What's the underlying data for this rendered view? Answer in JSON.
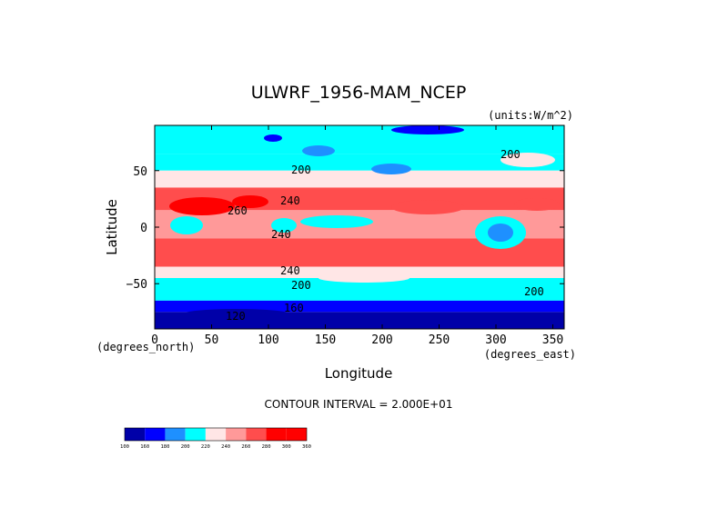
{
  "chart_data": {
    "type": "heatmap",
    "title": "ULWRF_1956-MAM_NCEP",
    "units": "(units:W/m^2)",
    "xlabel": "Longitude",
    "ylabel": "Latitude",
    "x_unit": "(degrees_east)",
    "y_unit": "(degrees_north)",
    "xlim": [
      0,
      360
    ],
    "ylim": [
      -90,
      90
    ],
    "x_ticks": [
      0,
      50,
      100,
      150,
      200,
      250,
      300,
      350
    ],
    "y_ticks": [
      50,
      0,
      -50
    ],
    "y_tick_labels": [
      "50",
      "0",
      "−50"
    ],
    "contour_interval_text": "CONTOUR INTERVAL = 2.000E+01",
    "contour_labels": [
      "200",
      "200",
      "240",
      "260",
      "240",
      "240",
      "200",
      "200",
      "160",
      "120"
    ],
    "colorbar": {
      "levels": [
        100,
        160,
        180,
        200,
        220,
        240,
        260,
        280,
        300,
        360
      ],
      "colors": [
        "#0000a8",
        "#0000ff",
        "#1e90ff",
        "#00ffff",
        "#ffe6e6",
        "#ff9999",
        "#ff4d4d",
        "#ff0000",
        "#ff0000"
      ]
    },
    "bands": [
      {
        "lat_from": 90,
        "lat_to": 65,
        "value": 200
      },
      {
        "lat_from": 65,
        "lat_to": 50,
        "value": 210
      },
      {
        "lat_from": 50,
        "lat_to": 35,
        "value": 230
      },
      {
        "lat_from": 35,
        "lat_to": 15,
        "value": 270
      },
      {
        "lat_from": 15,
        "lat_to": -10,
        "value": 240
      },
      {
        "lat_from": -10,
        "lat_to": -35,
        "value": 265
      },
      {
        "lat_from": -35,
        "lat_to": -45,
        "value": 230
      },
      {
        "lat_from": -45,
        "lat_to": -65,
        "value": 200
      },
      {
        "lat_from": -65,
        "lat_to": -75,
        "value": 170
      },
      {
        "lat_from": -75,
        "lat_to": -90,
        "value": 140
      }
    ]
  }
}
